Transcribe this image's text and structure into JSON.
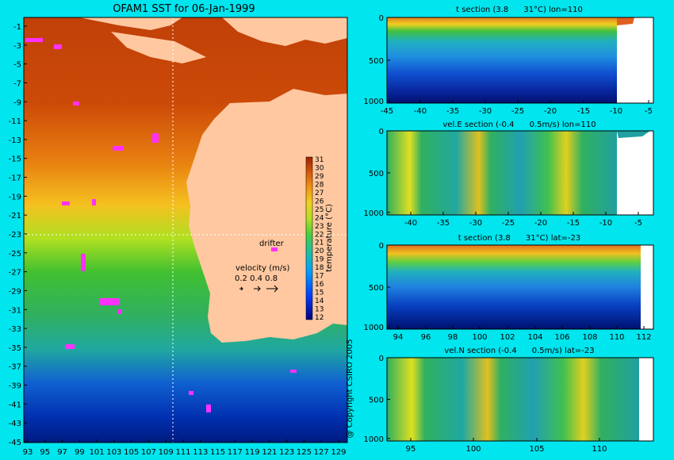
{
  "title": "OFAM1 SST for 06-Jan-1999",
  "copyright": "@ Copyright CSIRO 2005",
  "colorbar": {
    "label": "temperature (°C)",
    "ticks": [
      "12",
      "13",
      "14",
      "15",
      "16",
      "17",
      "18",
      "19",
      "20",
      "21",
      "22",
      "23",
      "24",
      "25",
      "26",
      "27",
      "28",
      "29",
      "30",
      "31"
    ]
  },
  "legend": {
    "drifter_label": "drifter",
    "velocity_label": "velocity (m/s)",
    "velocity_values": "0.2 0.4 0.8"
  },
  "map": {
    "lat_ticks": [
      "-1",
      "-3",
      "-5",
      "-7",
      "-9",
      "-11",
      "-13",
      "-15",
      "-17",
      "-19",
      "-21",
      "-23",
      "-25",
      "-27",
      "-29",
      "-31",
      "-33",
      "-35",
      "-37",
      "-39",
      "-41",
      "-43",
      "-45"
    ],
    "lon_ticks": [
      "93",
      "95",
      "97",
      "99",
      "101",
      "103",
      "105",
      "107",
      "109",
      "111",
      "113",
      "115",
      "117",
      "119",
      "121",
      "123",
      "125",
      "127",
      "129"
    ]
  },
  "sections": [
    {
      "title": "t section (3.8      31°C) lon=110",
      "x_ticks": [
        "-45",
        "-40",
        "-35",
        "-30",
        "-25",
        "-20",
        "-15",
        "-10",
        "-5"
      ],
      "y_ticks": [
        "0",
        "500",
        "1000"
      ]
    },
    {
      "title": "vel.E section (-0.4      0.5m/s) lon=110",
      "x_ticks": [
        "-40",
        "-35",
        "-30",
        "-25",
        "-20",
        "-15",
        "-10",
        "-5"
      ],
      "y_ticks": [
        "0",
        "500",
        "1000"
      ]
    },
    {
      "title": "t section (3.8      31°C) lat=-23",
      "x_ticks": [
        "94",
        "96",
        "98",
        "100",
        "102",
        "104",
        "106",
        "108",
        "110",
        "112"
      ],
      "y_ticks": [
        "0",
        "500",
        "1000"
      ]
    },
    {
      "title": "vel.N section (-0.4      0.5m/s) lat=-23",
      "x_ticks": [
        "95",
        "100",
        "105",
        "110"
      ],
      "y_ticks": [
        "0",
        "500",
        "1000"
      ]
    }
  ],
  "chart_data": [
    {
      "type": "heatmap",
      "title": "OFAM1 SST for 06-Jan-1999",
      "x_axis": "longitude",
      "xlim": [
        93,
        130
      ],
      "y_axis": "latitude",
      "ylim": [
        -45,
        -1
      ],
      "colorbar_range": [
        12,
        31
      ],
      "colorbar_label": "temperature (°C)"
    },
    {
      "type": "heatmap",
      "title": "t section (3.8      31°C) lon=110",
      "xlim": [
        -45,
        -2
      ],
      "ylim": [
        1050,
        0
      ],
      "value_range": [
        3.8,
        31
      ]
    },
    {
      "type": "heatmap",
      "title": "vel.E section (-0.4      0.5m/s) lon=110",
      "xlim": [
        -45,
        -2
      ],
      "ylim": [
        1050,
        0
      ],
      "value_range": [
        -0.4,
        0.5
      ]
    },
    {
      "type": "heatmap",
      "title": "t section (3.8      31°C) lat=-23",
      "xlim": [
        93,
        114
      ],
      "ylim": [
        1050,
        0
      ],
      "value_range": [
        3.8,
        31
      ]
    },
    {
      "type": "heatmap",
      "title": "vel.N section (-0.4      0.5m/s) lat=-23",
      "xlim": [
        93,
        114
      ],
      "ylim": [
        1050,
        0
      ],
      "value_range": [
        -0.4,
        0.5
      ]
    }
  ]
}
